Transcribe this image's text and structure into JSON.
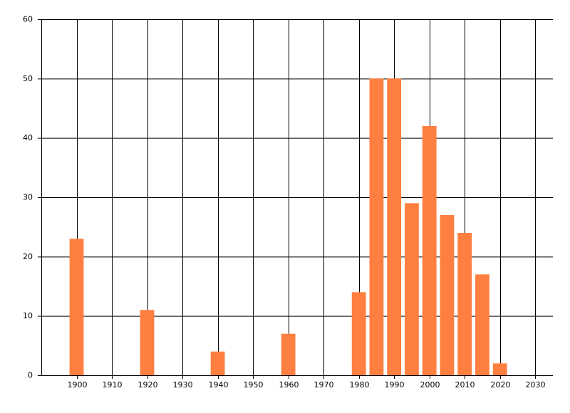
{
  "chart_data": {
    "type": "bar",
    "x": [
      1900,
      1920,
      1940,
      1960,
      1980,
      1985,
      1990,
      1995,
      2000,
      2005,
      2010,
      2015,
      2020
    ],
    "values": [
      23,
      11,
      4,
      7,
      14,
      50,
      50,
      29,
      42,
      27,
      24,
      17,
      2
    ],
    "color": "#ff7f40",
    "xlim": [
      1890,
      2035
    ],
    "xticks": [
      1900,
      1910,
      1920,
      1930,
      1940,
      1950,
      1960,
      1970,
      1980,
      1990,
      2000,
      2010,
      2020,
      2030
    ],
    "ylim": [
      0,
      60
    ],
    "yticks": [
      0,
      10,
      20,
      30,
      40,
      50,
      60
    ],
    "grid": true
  }
}
